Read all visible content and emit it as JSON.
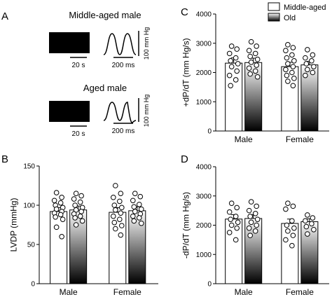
{
  "panel_a": {
    "letter": "A",
    "scale_pressure": "100 mm Hg",
    "traces": [
      {
        "title": "Middle-aged male",
        "scale_long": "20 s",
        "scale_short": "200 ms"
      },
      {
        "title": "Aged male",
        "scale_long": "20 s",
        "scale_short": "200 ms"
      }
    ]
  },
  "colors": {
    "gradient_top": "#ffffff",
    "gradient_bottom": "#000000",
    "bar_open": "#ffffff",
    "stroke": "#000000"
  },
  "chart_data": [
    {
      "id": "B",
      "type": "bar",
      "letter": "B",
      "ylabel": "LVDP (mmHg)",
      "ylim": [
        0,
        150
      ],
      "yticks": [
        0,
        50,
        100,
        150
      ],
      "categories": [
        "Male",
        "Female"
      ],
      "series": [
        {
          "style": "open",
          "values": [
            92,
            91
          ],
          "err": [
            5,
            6
          ],
          "points": [
            [
              116,
              110,
              106,
              103,
              100,
              97,
              95,
              92,
              90,
              88,
              85,
              82,
              72,
              60
            ],
            [
              125,
              115,
              110,
              105,
              100,
              97,
              94,
              90,
              86,
              82,
              78,
              74,
              70,
              62
            ]
          ]
        },
        {
          "style": "gradient",
          "values": [
            94,
            93
          ],
          "err": [
            5,
            5
          ],
          "points": [
            [
              115,
              112,
              108,
              104,
              100,
              97,
              94,
              92,
              89,
              86,
              84,
              80,
              75
            ],
            [
              115,
              111,
              106,
              101,
              98,
              95,
              92,
              89,
              86,
              84,
              80,
              77
            ]
          ]
        }
      ]
    },
    {
      "id": "C",
      "type": "bar",
      "letter": "C",
      "ylabel": "+dP/dT (mm Hg/s)",
      "ylim": [
        0,
        4000
      ],
      "yticks": [
        0,
        1000,
        2000,
        3000,
        4000
      ],
      "categories": [
        "Male",
        "Female"
      ],
      "legend": {
        "position": "top-right",
        "entries": [
          "Middle-aged",
          "Old"
        ]
      },
      "series": [
        {
          "name": "Middle-aged",
          "style": "open",
          "values": [
            2320,
            2200
          ],
          "err": [
            180,
            150
          ],
          "points": [
            [
              2900,
              2800,
              2650,
              2500,
              2400,
              2300,
              2200,
              2050,
              1900,
              1750,
              1550
            ],
            [
              2950,
              2850,
              2750,
              2600,
              2500,
              2400,
              2300,
              2200,
              2100,
              2000,
              1900,
              1800,
              1700,
              1550
            ]
          ]
        },
        {
          "name": "Old",
          "style": "gradient",
          "values": [
            2340,
            2260
          ],
          "err": [
            150,
            120
          ],
          "points": [
            [
              3050,
              2900,
              2750,
              2650,
              2550,
              2450,
              2350,
              2250,
              2150,
              2050,
              1950,
              1850
            ],
            [
              2780,
              2600,
              2500,
              2400,
              2300,
              2200,
              2100,
              2000,
              1900
            ]
          ]
        }
      ]
    },
    {
      "id": "D",
      "type": "bar",
      "letter": "D",
      "ylabel": "-dP/dT (mm Hg/s)",
      "ylim": [
        0,
        4000
      ],
      "yticks": [
        0,
        1000,
        2000,
        3000,
        4000
      ],
      "categories": [
        "Male",
        "Female"
      ],
      "series": [
        {
          "style": "open",
          "values": [
            2210,
            2060
          ],
          "err": [
            150,
            150
          ],
          "points": [
            [
              2750,
              2600,
              2450,
              2300,
              2200,
              2100,
              2000,
              1900,
              1750,
              1500
            ],
            [
              2750,
              2650,
              2550,
              2150,
              2000,
              1900,
              1800,
              1650,
              1500,
              1300
            ]
          ]
        },
        {
          "style": "gradient",
          "values": [
            2230,
            2120
          ],
          "err": [
            130,
            100
          ],
          "points": [
            [
              2800,
              2650,
              2500,
              2400,
              2300,
              2200,
              2100,
              2000,
              1900,
              1800,
              1650
            ],
            [
              2350,
              2250,
              2150,
              2050,
              1950,
              1850,
              1700
            ]
          ]
        }
      ]
    }
  ]
}
